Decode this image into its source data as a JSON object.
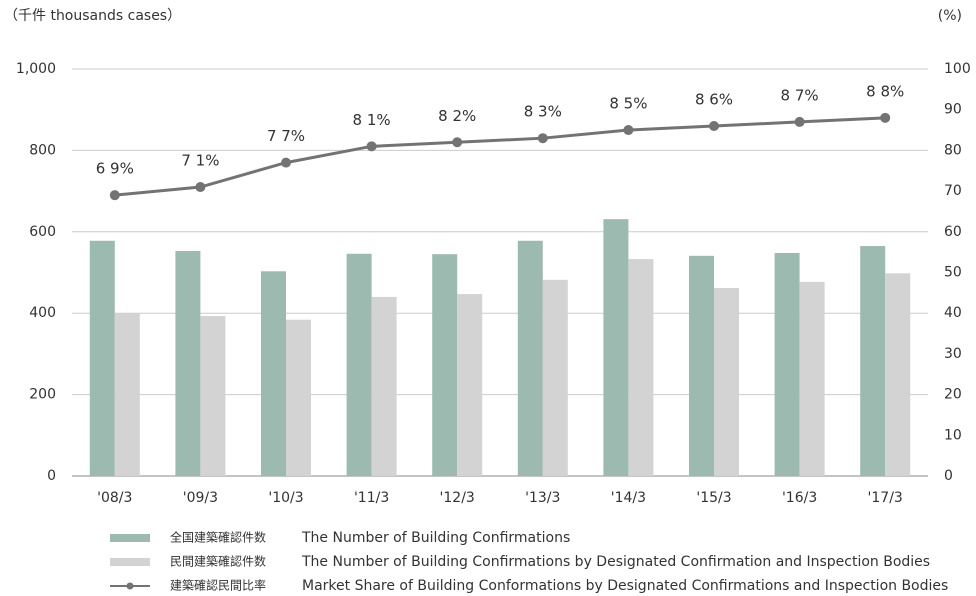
{
  "chart_data": {
    "type": "bar_line",
    "y_label": "（千件 thousands cases）",
    "y2_label": "(%)",
    "categories": [
      "'08/3",
      "'09/3",
      "'10/3",
      "'11/3",
      "'12/3",
      "'13/3",
      "'14/3",
      "'15/3",
      "'16/3",
      "'17/3"
    ],
    "series": [
      {
        "name": "全国建築確認件数",
        "description": "The Number of Building Confirmations",
        "type": "bar",
        "color": "#9dbab0",
        "values": [
          578,
          553,
          503,
          546,
          545,
          578,
          631,
          541,
          548,
          565
        ]
      },
      {
        "name": "民間建築確認件数",
        "description": "The Number of Building Confirmations by Designated Confirmation and Inspection Bodies",
        "type": "bar",
        "color": "#d3d3d3",
        "values": [
          400,
          393,
          384,
          440,
          447,
          482,
          533,
          462,
          477,
          498
        ]
      },
      {
        "name": "建築確認民間比率",
        "description": "Market Share of Building Conformations by Designated Confirmations and Inspection Bodies",
        "type": "line",
        "axis": "y2",
        "color": "#737373",
        "values": [
          69,
          71,
          77,
          81,
          82,
          83,
          85,
          86,
          87,
          88
        ],
        "value_labels": [
          "6 9%",
          "7 1%",
          "7 7%",
          "8 1%",
          "8 2%",
          "8 3%",
          "8 5%",
          "8 6%",
          "8 7%",
          "8 8%"
        ]
      }
    ],
    "ylim": [
      0,
      1000
    ],
    "yticks": [
      0,
      200,
      400,
      600,
      800,
      {
        "value": 1000,
        "label": "1,000"
      }
    ],
    "y2lim": [
      0,
      100
    ],
    "y2ticks": [
      0,
      10,
      20,
      30,
      40,
      50,
      60,
      70,
      80,
      90,
      100
    ],
    "grid": true
  }
}
